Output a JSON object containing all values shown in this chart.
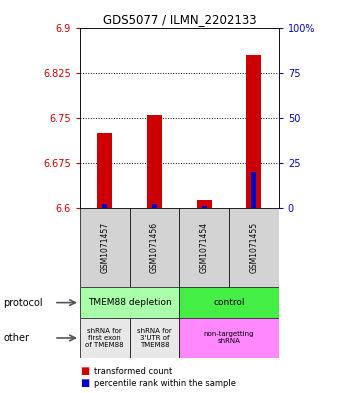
{
  "title": "GDS5077 / ILMN_2202133",
  "samples": [
    "GSM1071457",
    "GSM1071456",
    "GSM1071454",
    "GSM1071455"
  ],
  "red_values": [
    6.725,
    6.755,
    6.613,
    6.855
  ],
  "blue_percentiles": [
    2.5,
    2.5,
    1.5,
    20.0
  ],
  "ylim_left": [
    6.6,
    6.9
  ],
  "ylim_right": [
    0,
    100
  ],
  "yticks_left": [
    6.6,
    6.675,
    6.75,
    6.825,
    6.9
  ],
  "ytick_labels_left": [
    "6.6",
    "6.675",
    "6.75",
    "6.825",
    "6.9"
  ],
  "yticks_right": [
    0,
    25,
    50,
    75,
    100
  ],
  "ytick_labels_right": [
    "0",
    "25",
    "50",
    "75",
    "100%"
  ],
  "hlines": [
    6.675,
    6.75,
    6.825
  ],
  "bar_width": 0.3,
  "blue_bar_width": 0.1,
  "protocol_labels": [
    "TMEM88 depletion",
    "control"
  ],
  "other_labels": [
    "shRNA for\nfirst exon\nof TMEM88",
    "shRNA for\n3'UTR of\nTMEM88",
    "non-targetting\nshRNA"
  ],
  "protocol_colors": [
    "#AAFFAA",
    "#44EE44"
  ],
  "other_colors": [
    "#E8E8E8",
    "#E8E8E8",
    "#FF88FF"
  ],
  "legend_red": "transformed count",
  "legend_blue": "percentile rank within the sample",
  "label_protocol": "protocol",
  "label_other": "other",
  "red_color": "#CC0000",
  "blue_color": "#0000CC"
}
